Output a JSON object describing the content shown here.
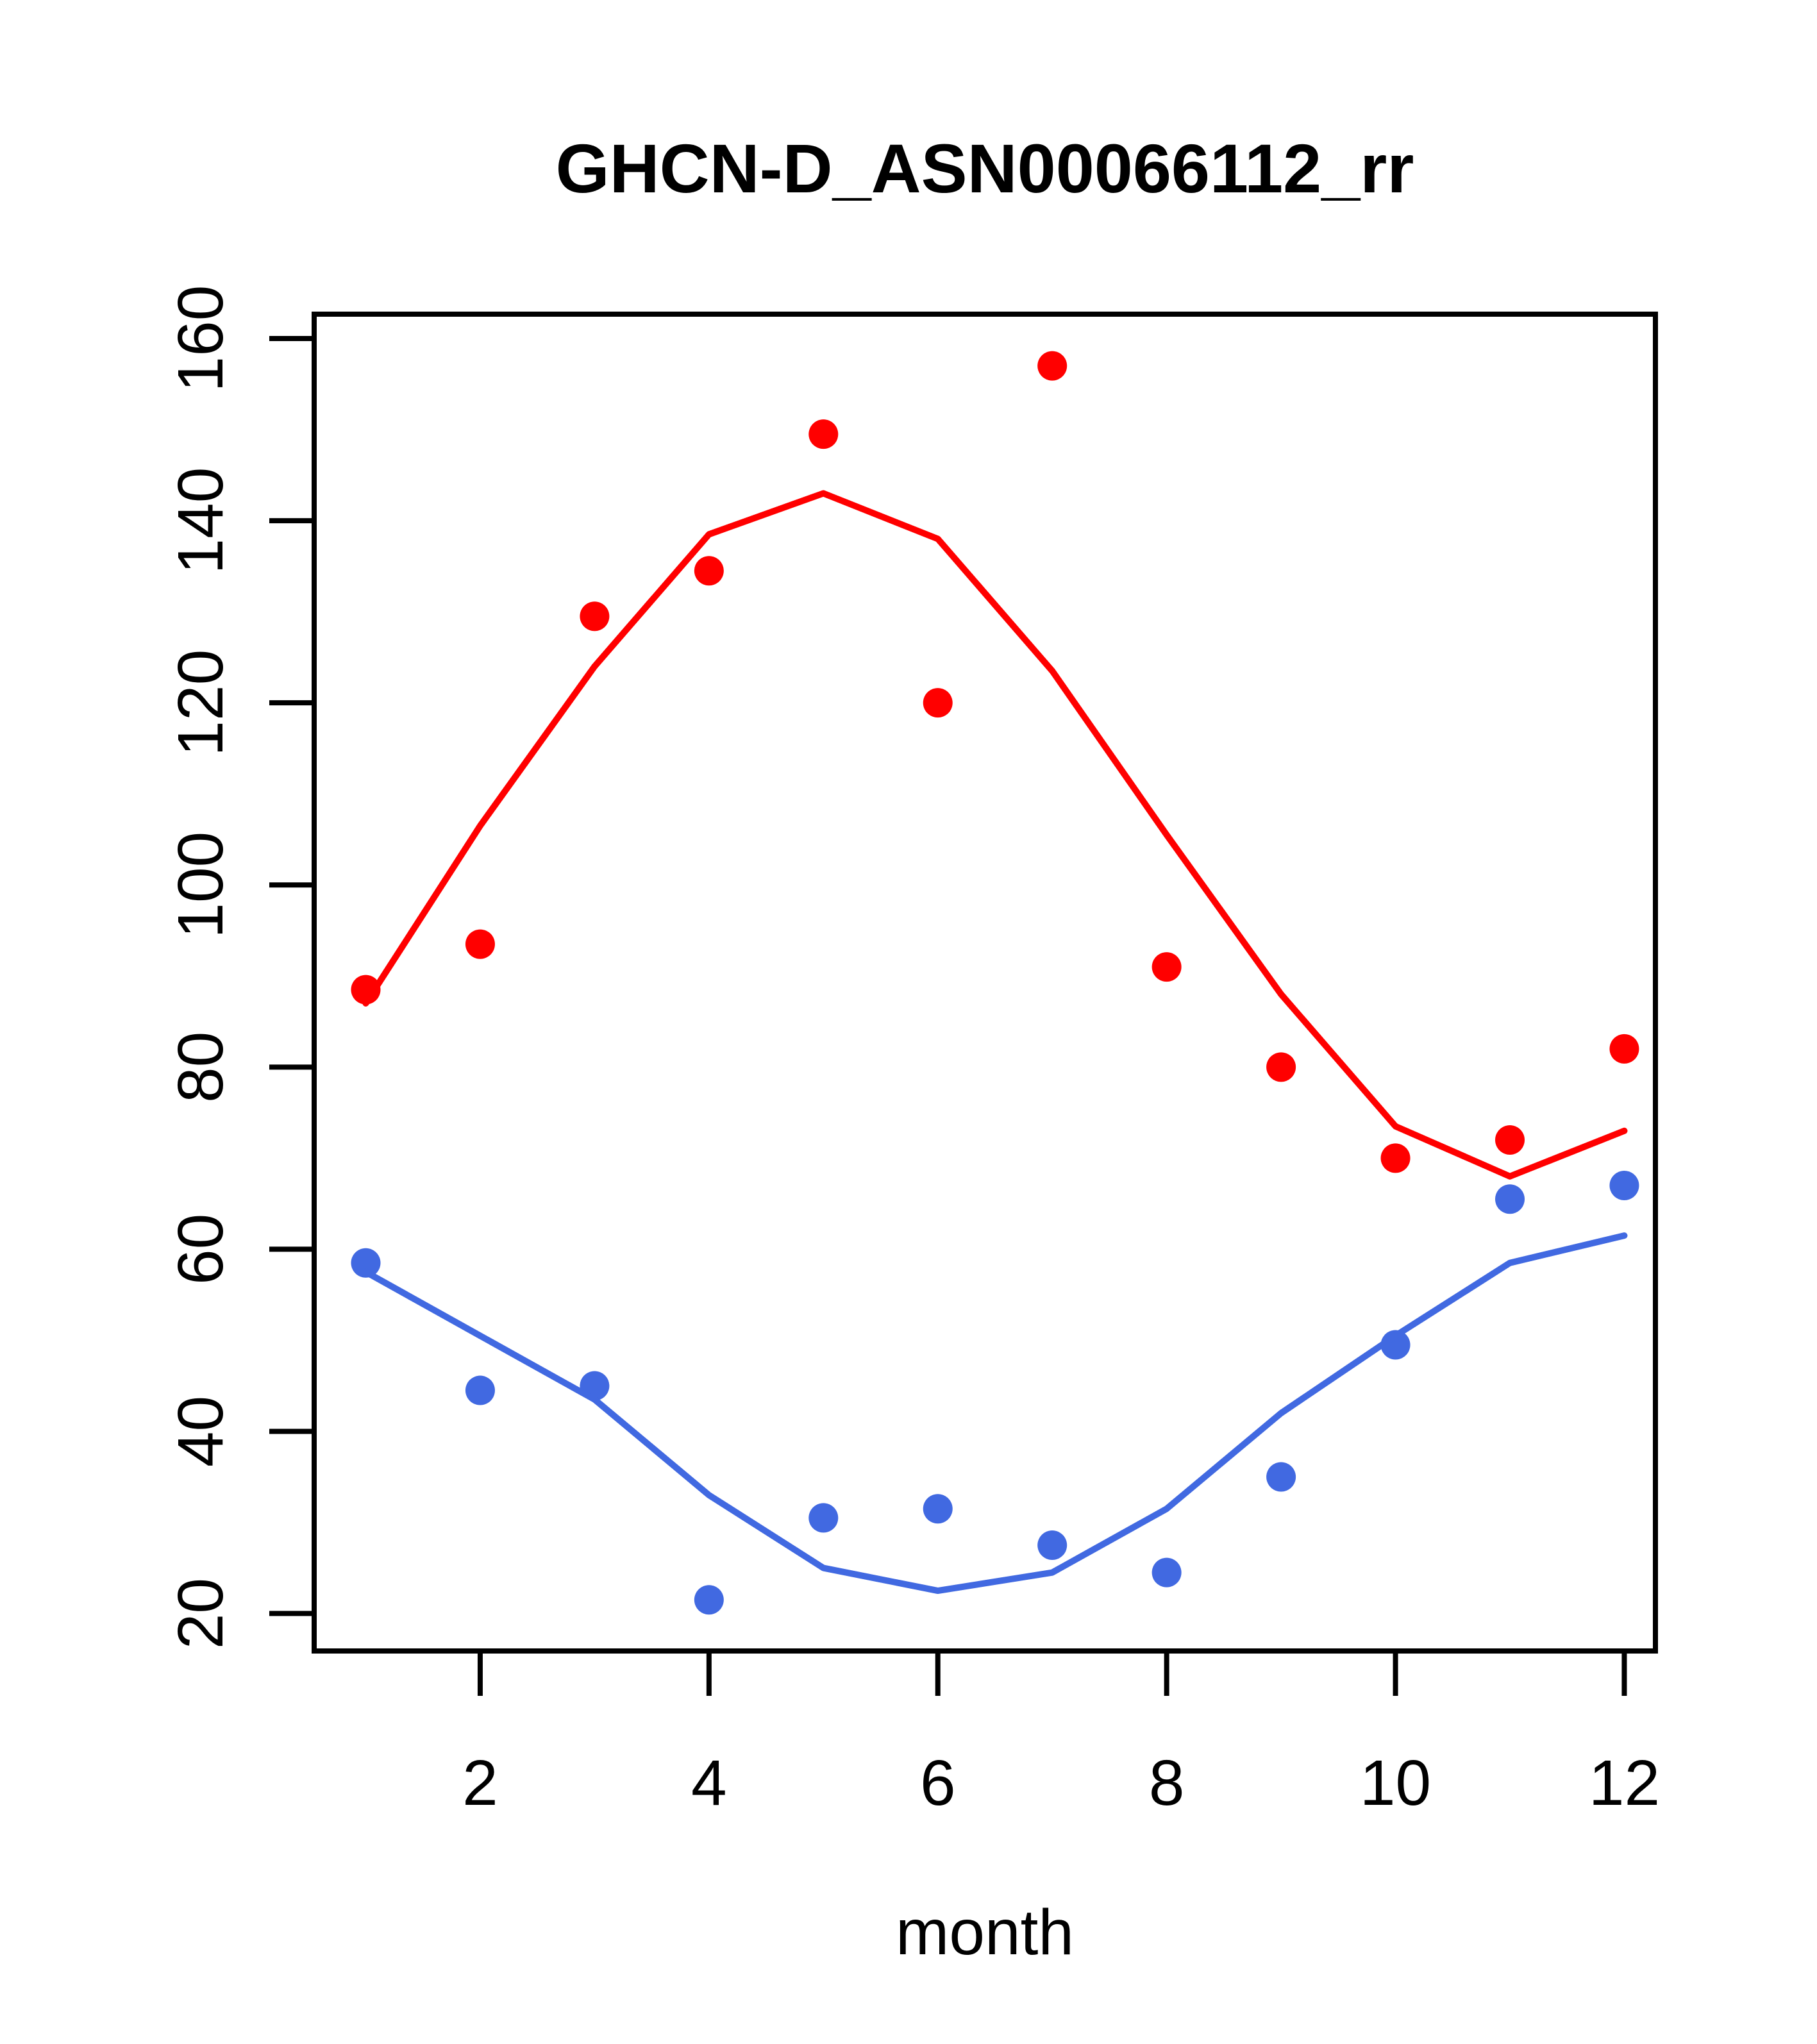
{
  "chart_data": {
    "type": "scatter",
    "title": "GHCN-D_ASN00066112_rr",
    "xlabel": "month",
    "ylabel": "",
    "x": [
      1,
      2,
      3,
      4,
      5,
      6,
      7,
      8,
      9,
      10,
      11,
      12
    ],
    "xticks": [
      2,
      4,
      6,
      8,
      10,
      12
    ],
    "yticks": [
      20,
      40,
      60,
      80,
      100,
      120,
      140,
      160
    ],
    "xlim": [
      0.55,
      12.27
    ],
    "ylim": [
      15.9,
      162.7
    ],
    "grid": false,
    "legend": "none",
    "axis_color": "#000000",
    "background_color": "#ffffff",
    "series": [
      {
        "name": "red-points",
        "type": "scatter",
        "color": "#FF0000",
        "values": [
          88.5,
          93.5,
          129.5,
          134.5,
          149.5,
          120,
          157,
          91,
          80,
          70,
          72,
          82
        ]
      },
      {
        "name": "red-loess-line",
        "type": "line",
        "color": "#FF0000",
        "values": [
          87,
          106.5,
          124,
          138.5,
          143,
          138,
          123.5,
          105.5,
          88,
          73.5,
          68,
          73
        ]
      },
      {
        "name": "blue-points",
        "type": "scatter",
        "color": "#4169E1",
        "values": [
          58.5,
          44.5,
          45,
          21.5,
          30.5,
          31.5,
          27.5,
          24.5,
          35,
          49.5,
          65.5,
          67
        ]
      },
      {
        "name": "blue-loess-line",
        "type": "line",
        "color": "#4169E1",
        "values": [
          57.5,
          50.5,
          43.5,
          33,
          25,
          22.5,
          24.5,
          31.5,
          42,
          50.5,
          58.5,
          61.5
        ]
      }
    ]
  }
}
